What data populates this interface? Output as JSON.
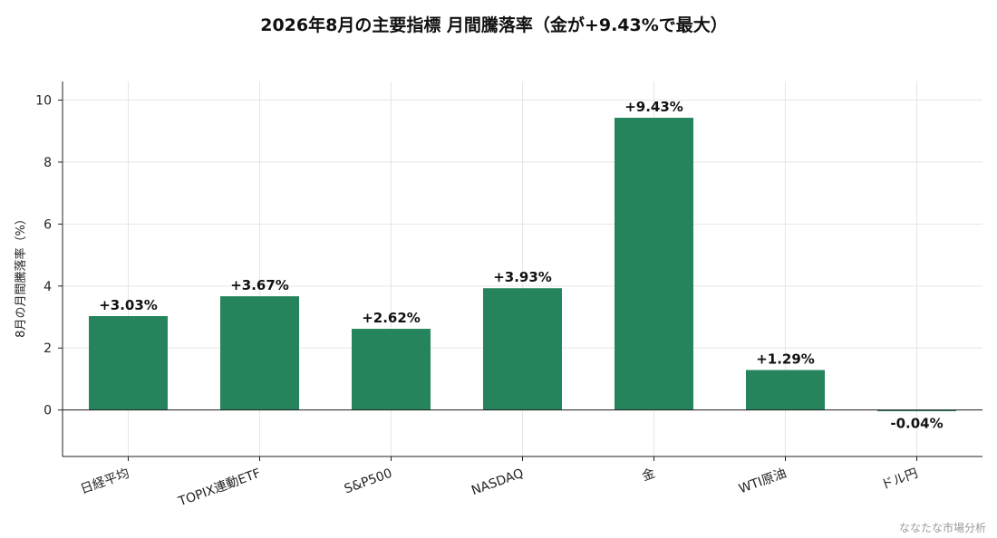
{
  "chart_data": {
    "type": "bar",
    "title": "2026年8月の主要指標 月間騰落率（金が+9.43%で最大）",
    "ylabel": "8月の月間騰落率（%）",
    "xlabel": "",
    "categories": [
      "日経平均",
      "TOPIX連動ETF",
      "S&P500",
      "NASDAQ",
      "金",
      "WTI原油",
      "ドル円"
    ],
    "values": [
      3.03,
      3.67,
      2.62,
      3.93,
      9.43,
      1.29,
      -0.04
    ],
    "data_labels": [
      "+3.03%",
      "+3.67%",
      "+2.62%",
      "+3.93%",
      "+9.43%",
      "+1.29%",
      "-0.04%"
    ],
    "ylim": [
      -1.5,
      10.6
    ],
    "yticks": [
      0,
      2,
      4,
      6,
      8,
      10
    ],
    "grid": true,
    "bar_color": "#26845c"
  },
  "watermark": "ななたな市場分析"
}
